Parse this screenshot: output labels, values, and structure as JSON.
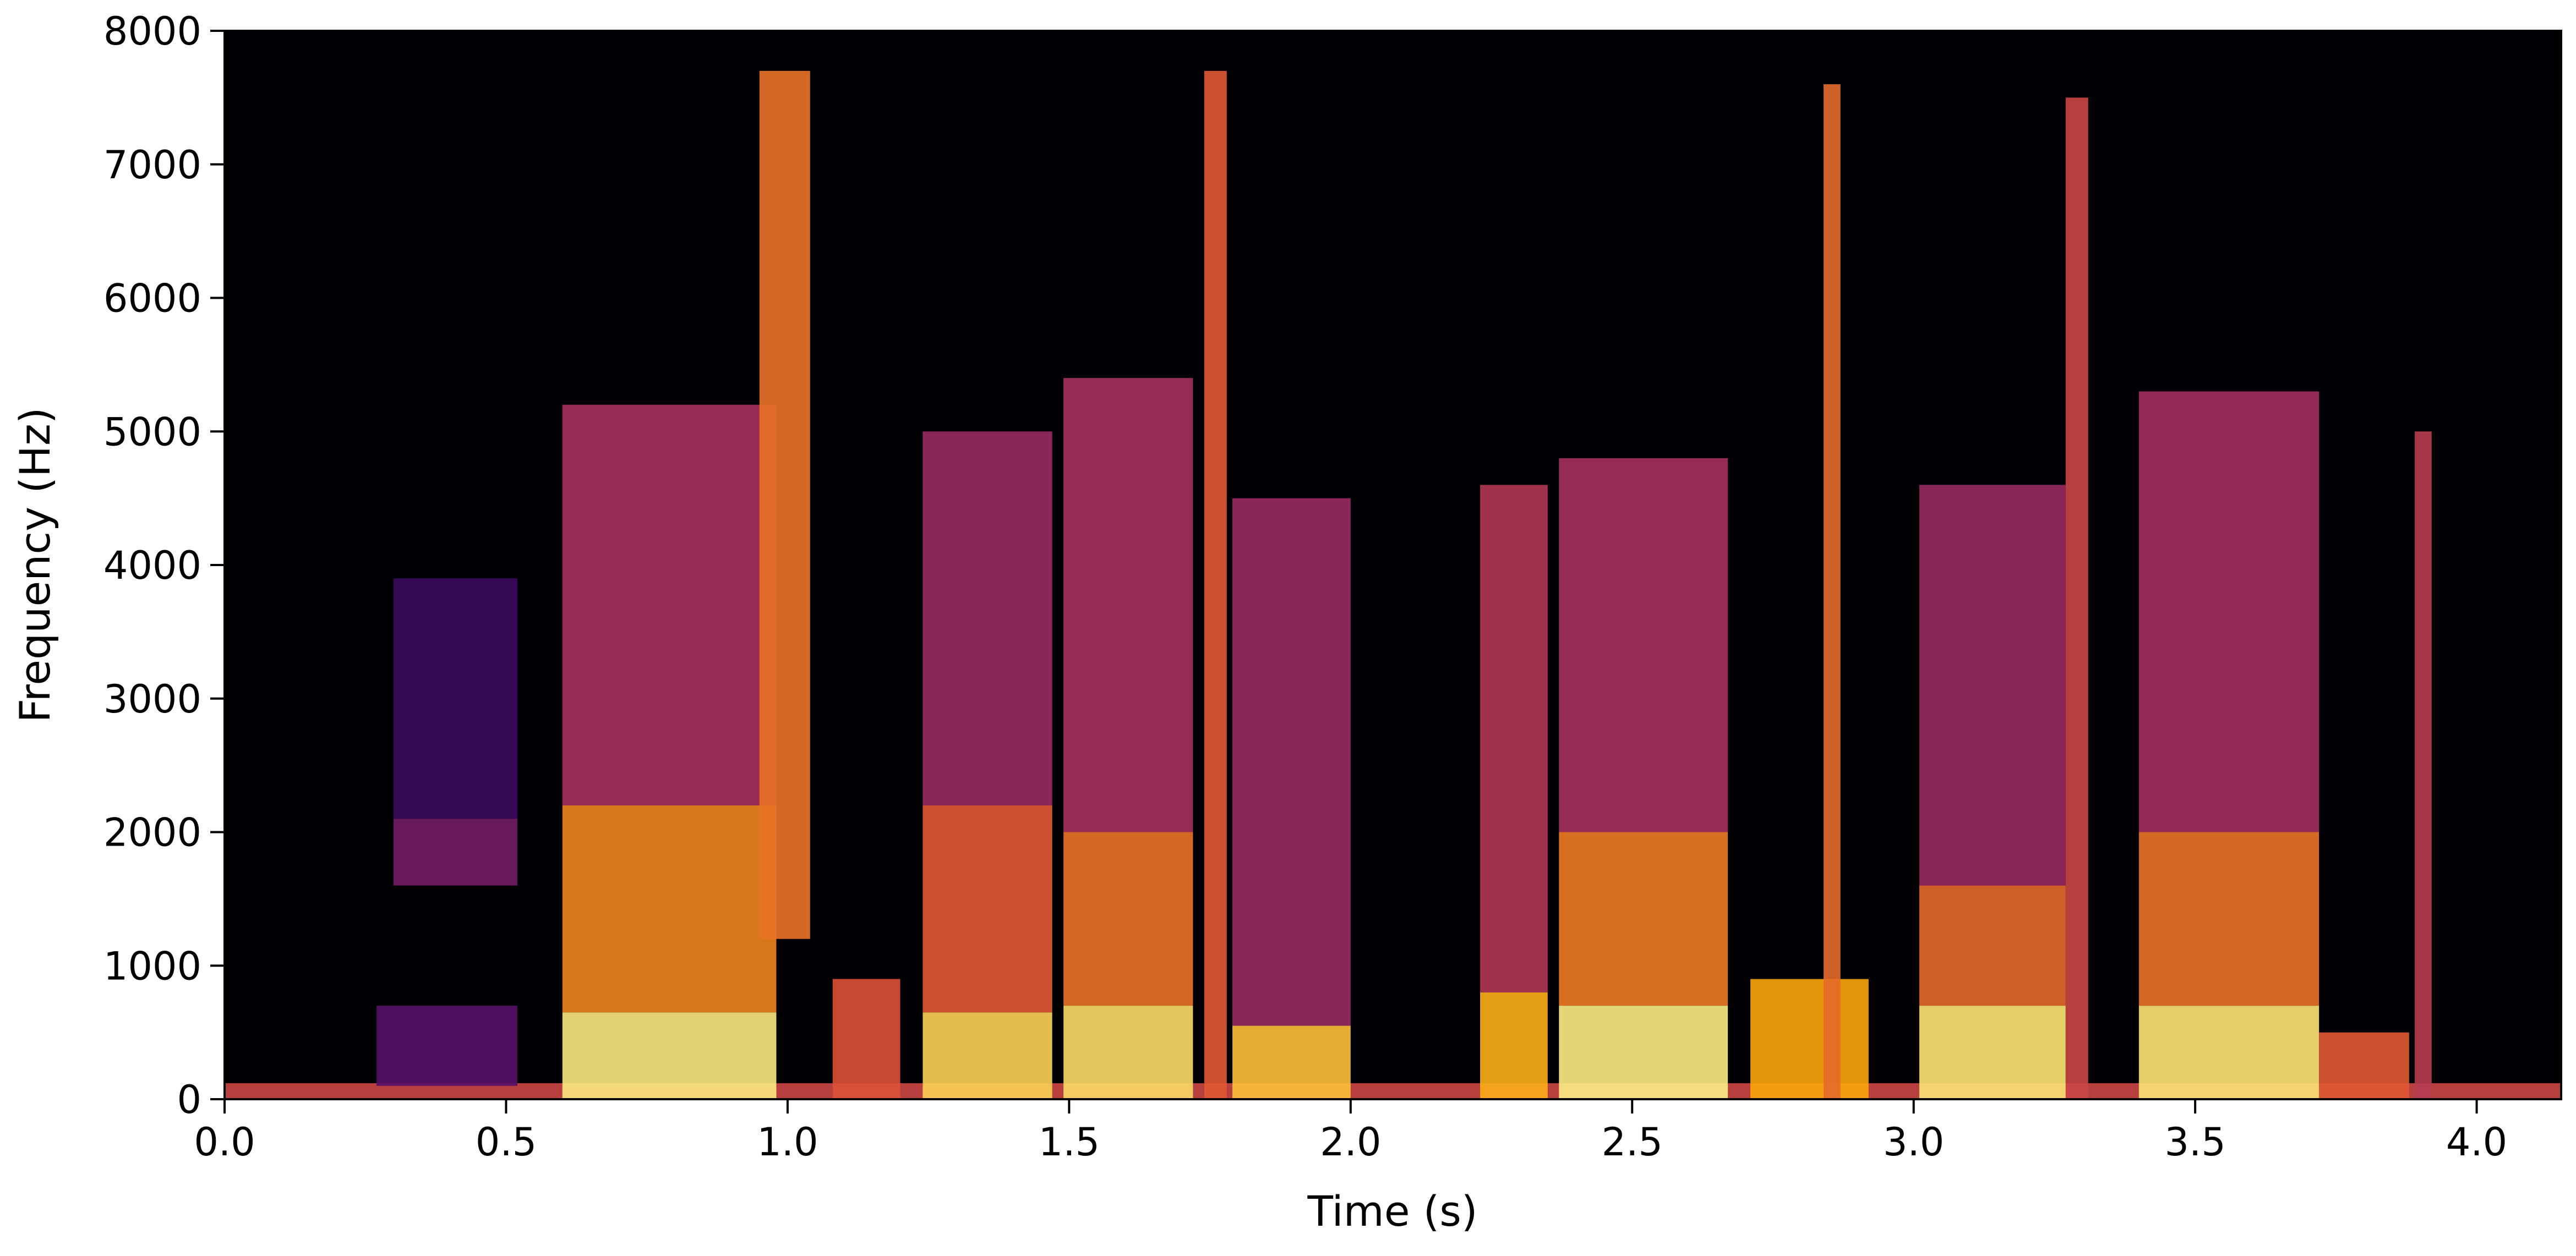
{
  "chart_data": {
    "type": "heatmap",
    "subtype": "spectrogram",
    "title": "",
    "xlabel": "Time (s)",
    "ylabel": "Frequency (Hz)",
    "xlim": [
      0.0,
      4.15
    ],
    "ylim": [
      0,
      8000
    ],
    "x_ticks": [
      0.0,
      0.5,
      1.0,
      1.5,
      2.0,
      2.5,
      3.0,
      3.5,
      4.0
    ],
    "x_tick_labels": [
      "0.0",
      "0.5",
      "1.0",
      "1.5",
      "2.0",
      "2.5",
      "3.0",
      "3.5",
      "4.0"
    ],
    "y_ticks": [
      0,
      1000,
      2000,
      3000,
      4000,
      5000,
      6000,
      7000,
      8000
    ],
    "y_tick_labels": [
      "0",
      "1000",
      "2000",
      "3000",
      "4000",
      "5000",
      "6000",
      "7000",
      "8000"
    ],
    "colormap": "inferno",
    "colormap_stops": [
      "#000004",
      "#420a68",
      "#932667",
      "#dd513a",
      "#fca50a",
      "#fcffa4"
    ],
    "grid": false,
    "legend": "none",
    "energy_regions": [
      {
        "t0": 0.0,
        "t1": 4.15,
        "f0": 0,
        "f1": 120,
        "level": 0.55
      },
      {
        "t0": 0.27,
        "t1": 0.52,
        "f0": 100,
        "f1": 700,
        "level": 0.25
      },
      {
        "t0": 0.3,
        "t1": 0.52,
        "f0": 1600,
        "f1": 2100,
        "level": 0.32
      },
      {
        "t0": 0.3,
        "t1": 0.52,
        "f0": 2100,
        "f1": 3900,
        "level": 0.18
      },
      {
        "t0": 0.6,
        "t1": 0.98,
        "f0": 0,
        "f1": 650,
        "level": 0.95
      },
      {
        "t0": 0.6,
        "t1": 0.98,
        "f0": 650,
        "f1": 2200,
        "level": 0.72
      },
      {
        "t0": 0.6,
        "t1": 0.98,
        "f0": 2200,
        "f1": 5200,
        "level": 0.45
      },
      {
        "t0": 0.95,
        "t1": 1.04,
        "f0": 1200,
        "f1": 7700,
        "level": 0.68
      },
      {
        "t0": 1.08,
        "t1": 1.2,
        "f0": 0,
        "f1": 900,
        "level": 0.6
      },
      {
        "t0": 1.24,
        "t1": 1.47,
        "f0": 0,
        "f1": 650,
        "level": 0.9
      },
      {
        "t0": 1.24,
        "t1": 1.47,
        "f0": 650,
        "f1": 2200,
        "level": 0.62
      },
      {
        "t0": 1.24,
        "t1": 1.47,
        "f0": 2200,
        "f1": 5000,
        "level": 0.42
      },
      {
        "t0": 1.49,
        "t1": 1.72,
        "f0": 0,
        "f1": 700,
        "level": 0.92
      },
      {
        "t0": 1.49,
        "t1": 1.72,
        "f0": 700,
        "f1": 2000,
        "level": 0.68
      },
      {
        "t0": 1.49,
        "t1": 1.72,
        "f0": 2000,
        "f1": 5400,
        "level": 0.45
      },
      {
        "t0": 1.74,
        "t1": 1.78,
        "f0": 0,
        "f1": 7700,
        "level": 0.62
      },
      {
        "t0": 1.79,
        "t1": 2.0,
        "f0": 0,
        "f1": 550,
        "level": 0.86
      },
      {
        "t0": 1.79,
        "t1": 2.0,
        "f0": 550,
        "f1": 4500,
        "level": 0.42
      },
      {
        "t0": 2.23,
        "t1": 2.35,
        "f0": 0,
        "f1": 800,
        "level": 0.82
      },
      {
        "t0": 2.23,
        "t1": 2.35,
        "f0": 800,
        "f1": 4600,
        "level": 0.48
      },
      {
        "t0": 2.37,
        "t1": 2.67,
        "f0": 0,
        "f1": 700,
        "level": 0.96
      },
      {
        "t0": 2.37,
        "t1": 2.67,
        "f0": 700,
        "f1": 2000,
        "level": 0.7
      },
      {
        "t0": 2.37,
        "t1": 2.67,
        "f0": 2000,
        "f1": 4800,
        "level": 0.45
      },
      {
        "t0": 2.71,
        "t1": 2.92,
        "f0": 0,
        "f1": 900,
        "level": 0.8
      },
      {
        "t0": 2.84,
        "t1": 2.87,
        "f0": 0,
        "f1": 7600,
        "level": 0.66
      },
      {
        "t0": 3.01,
        "t1": 3.27,
        "f0": 0,
        "f1": 700,
        "level": 0.94
      },
      {
        "t0": 3.01,
        "t1": 3.27,
        "f0": 700,
        "f1": 1600,
        "level": 0.66
      },
      {
        "t0": 3.01,
        "t1": 3.27,
        "f0": 1600,
        "f1": 4600,
        "level": 0.42
      },
      {
        "t0": 3.27,
        "t1": 3.31,
        "f0": 0,
        "f1": 7500,
        "level": 0.55
      },
      {
        "t0": 3.4,
        "t1": 3.72,
        "f0": 0,
        "f1": 700,
        "level": 0.94
      },
      {
        "t0": 3.4,
        "t1": 3.72,
        "f0": 700,
        "f1": 2000,
        "level": 0.68
      },
      {
        "t0": 3.4,
        "t1": 3.72,
        "f0": 2000,
        "f1": 5300,
        "level": 0.44
      },
      {
        "t0": 3.72,
        "t1": 3.88,
        "f0": 0,
        "f1": 500,
        "level": 0.62
      },
      {
        "t0": 3.89,
        "t1": 3.92,
        "f0": 0,
        "f1": 5000,
        "level": 0.5
      }
    ]
  }
}
